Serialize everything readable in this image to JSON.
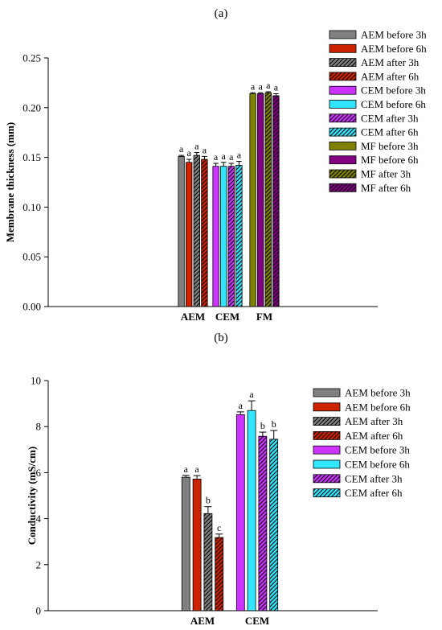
{
  "panels": [
    {
      "panel_label": "(a)",
      "chart_data": {
        "type": "bar",
        "title": "",
        "xlabel": "",
        "ylabel": "Membrane thickness (mm)",
        "ylim": [
          0,
          0.25
        ],
        "yticks": [
          "0.00",
          "0.05",
          "0.10",
          "0.15",
          "0.20",
          "0.25"
        ],
        "grid": false,
        "legend_position": "top-right",
        "groups": [
          {
            "label": "AEM",
            "bars": [
              {
                "name": "AEM  before 3h",
                "value": 0.151,
                "error": 0.001,
                "sig": "a",
                "color": "#808080",
                "hatched": false
              },
              {
                "name": "AEM  before 6h",
                "value": 0.145,
                "error": 0.003,
                "sig": "a",
                "color": "#cc2200",
                "hatched": false
              },
              {
                "name": "AEM after 3h",
                "value": 0.152,
                "error": 0.003,
                "sig": "a",
                "color": "#808080",
                "hatched": true
              },
              {
                "name": "AEM after 6h",
                "value": 0.148,
                "error": 0.003,
                "sig": "a",
                "color": "#cc2200",
                "hatched": true
              }
            ]
          },
          {
            "label": "CEM",
            "bars": [
              {
                "name": "CEM  before 3h",
                "value": 0.141,
                "error": 0.003,
                "sig": "a",
                "color": "#cc33ff",
                "hatched": false
              },
              {
                "name": "CEM  before 6h",
                "value": 0.141,
                "error": 0.004,
                "sig": "a",
                "color": "#33e6ff",
                "hatched": false
              },
              {
                "name": "CEM after 3h",
                "value": 0.141,
                "error": 0.003,
                "sig": "a",
                "color": "#cc33ff",
                "hatched": true
              },
              {
                "name": "CEM after 6h",
                "value": 0.142,
                "error": 0.004,
                "sig": "a",
                "color": "#33e6ff",
                "hatched": true
              }
            ]
          },
          {
            "label": "FM",
            "bars": [
              {
                "name": " MF before 3h",
                "value": 0.214,
                "error": 0.001,
                "sig": "a",
                "color": "#808000",
                "hatched": false
              },
              {
                "name": "MF before 6h",
                "value": 0.214,
                "error": 0.001,
                "sig": "a",
                "color": "#800080",
                "hatched": false
              },
              {
                "name": "MF after 3h",
                "value": 0.215,
                "error": 0.001,
                "sig": "a",
                "color": "#808000",
                "hatched": true
              },
              {
                "name": "MF after 6h",
                "value": 0.212,
                "error": 0.002,
                "sig": "a",
                "color": "#800080",
                "hatched": true
              }
            ]
          }
        ]
      }
    },
    {
      "panel_label": "(b)",
      "chart_data": {
        "type": "bar",
        "title": "",
        "xlabel": "",
        "ylabel": "Conductivity (mS/cm)",
        "ylim": [
          0,
          10
        ],
        "yticks": [
          "0",
          "2",
          "4",
          "6",
          "8",
          "10"
        ],
        "grid": false,
        "legend_position": "top-right",
        "groups": [
          {
            "label": "AEM",
            "bars": [
              {
                "name": "AEM  before 3h",
                "value": 5.8,
                "error": 0.08,
                "sig": "a",
                "color": "#808080",
                "hatched": false
              },
              {
                "name": "AEM  before 6h",
                "value": 5.72,
                "error": 0.15,
                "sig": "a",
                "color": "#cc2200",
                "hatched": false
              },
              {
                "name": "AEM after 3h",
                "value": 4.22,
                "error": 0.3,
                "sig": "b",
                "color": "#808080",
                "hatched": true
              },
              {
                "name": "AEM after 6h",
                "value": 3.18,
                "error": 0.15,
                "sig": "c",
                "color": "#cc2200",
                "hatched": true
              }
            ]
          },
          {
            "label": "CEM",
            "bars": [
              {
                "name": "CEM  before 3h",
                "value": 8.52,
                "error": 0.12,
                "sig": "a",
                "color": "#cc33ff",
                "hatched": false
              },
              {
                "name": "CEM  before 6h",
                "value": 8.7,
                "error": 0.42,
                "sig": "a",
                "color": "#33e6ff",
                "hatched": false
              },
              {
                "name": "CEM after 3h",
                "value": 7.58,
                "error": 0.18,
                "sig": "b",
                "color": "#cc33ff",
                "hatched": true
              },
              {
                "name": "CEM after 6h",
                "value": 7.45,
                "error": 0.38,
                "sig": "b",
                "color": "#33e6ff",
                "hatched": true
              }
            ]
          }
        ]
      }
    }
  ]
}
